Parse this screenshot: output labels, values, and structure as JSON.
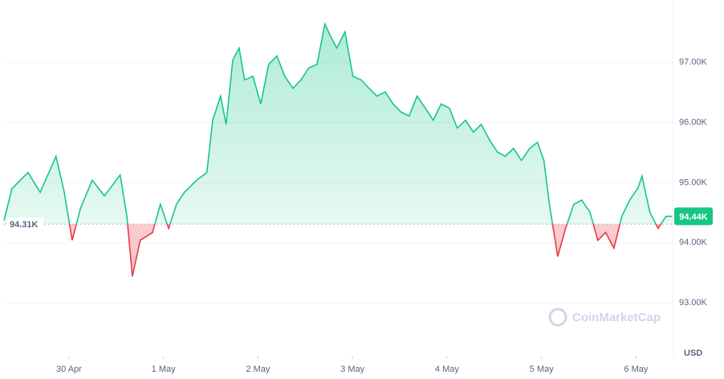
{
  "chart_data": {
    "type": "line",
    "y_axis_label": "USD",
    "watermark": "CoinMarketCap",
    "baseline": {
      "value": 94310,
      "label": "94.31K"
    },
    "current": {
      "value": 94440,
      "label": "94.44K"
    },
    "up_color": "#16c784",
    "down_color": "#ea3943",
    "grid": true,
    "xlim": [
      0,
      170
    ],
    "ylim": [
      92120,
      98040
    ],
    "xticks": [
      {
        "value": 16.5,
        "label": "30 Apr"
      },
      {
        "value": 40.5,
        "label": "1 May"
      },
      {
        "value": 64.5,
        "label": "2 May"
      },
      {
        "value": 88.5,
        "label": "3 May"
      },
      {
        "value": 112.5,
        "label": "4 May"
      },
      {
        "value": 136.5,
        "label": "5 May"
      },
      {
        "value": 160.5,
        "label": "6 May"
      }
    ],
    "yticks": [
      {
        "value": 93000,
        "label": "93.00K"
      },
      {
        "value": 94000,
        "label": "94.00K"
      },
      {
        "value": 95000,
        "label": "95.00K"
      },
      {
        "value": 96000,
        "label": "96.00K"
      },
      {
        "value": 97000,
        "label": "97.00K"
      }
    ],
    "x": [
      0,
      2.0,
      6.1,
      9.2,
      13.2,
      15.3,
      17.3,
      19.4,
      22.4,
      25.5,
      29.5,
      31.2,
      32.6,
      34.6,
      37.7,
      39.7,
      41.8,
      43.8,
      45.8,
      48.9,
      51.5,
      53.0,
      55.0,
      56.4,
      58.1,
      59.7,
      61.1,
      63.2,
      65.2,
      67.2,
      69.3,
      71.3,
      73.4,
      75.4,
      77.4,
      79.5,
      81.5,
      82.9,
      84.5,
      86.6,
      88.6,
      90.7,
      92.7,
      94.7,
      96.8,
      98.8,
      100.9,
      102.9,
      104.9,
      107.0,
      109.0,
      111.0,
      113.1,
      115.1,
      117.2,
      119.2,
      121.2,
      123.3,
      125.3,
      127.3,
      129.4,
      131.4,
      133.5,
      135.5,
      137.1,
      138.5,
      140.6,
      142.6,
      144.7,
      146.7,
      148.8,
      150.8,
      152.8,
      154.9,
      156.9,
      158.9,
      161.0,
      162.0,
      164.0,
      166.1,
      168.1,
      169.7
    ],
    "values": [
      94370,
      94900,
      95170,
      94840,
      95440,
      94840,
      94040,
      94570,
      95040,
      94780,
      95130,
      94440,
      93440,
      94040,
      94170,
      94640,
      94240,
      94640,
      94840,
      95040,
      95170,
      96040,
      96440,
      95970,
      97040,
      97240,
      96710,
      96770,
      96310,
      96970,
      97110,
      96770,
      96570,
      96710,
      96910,
      96970,
      97640,
      97440,
      97240,
      97510,
      96770,
      96710,
      96570,
      96440,
      96510,
      96310,
      96170,
      96110,
      96440,
      96240,
      96040,
      96310,
      96240,
      95910,
      96040,
      95840,
      95970,
      95710,
      95510,
      95440,
      95570,
      95370,
      95570,
      95670,
      95370,
      94640,
      93770,
      94240,
      94640,
      94710,
      94510,
      94040,
      94170,
      93910,
      94440,
      94710,
      94910,
      95110,
      94510,
      94240,
      94440,
      94440
    ]
  }
}
